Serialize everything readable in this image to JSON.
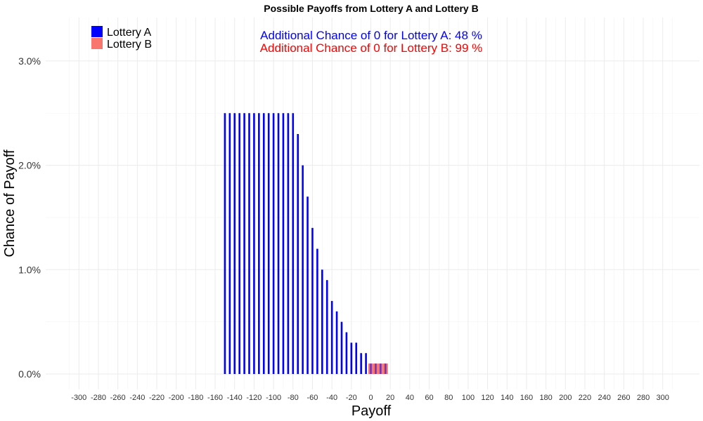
{
  "chart_data": {
    "type": "bar",
    "title": "Possible Payoffs from Lottery A and Lottery B",
    "xlabel": "Payoff",
    "ylabel": "Chance of Payoff",
    "xlim": [
      -310,
      310
    ],
    "ylim": [
      0,
      3.3
    ],
    "x_ticks": [
      -300,
      -280,
      -260,
      -240,
      -220,
      -200,
      -180,
      -160,
      -140,
      -120,
      -100,
      -80,
      -60,
      -40,
      -20,
      0,
      20,
      40,
      60,
      80,
      100,
      120,
      140,
      160,
      180,
      200,
      220,
      240,
      260,
      280,
      300
    ],
    "y_ticks": [
      {
        "value": 0,
        "label": "0.0%"
      },
      {
        "value": 1,
        "label": "1.0%"
      },
      {
        "value": 2,
        "label": "2.0%"
      },
      {
        "value": 3,
        "label": "3.0%"
      }
    ],
    "grid": true,
    "legend_position": "top-left",
    "annotations": [
      {
        "text": "Additional Chance of 0 for Lottery A:  48 %",
        "color": "#0000ff"
      },
      {
        "text": "Additional Chance of 0 for Lottery B:  99 %",
        "color": "#ff0000"
      }
    ],
    "series": [
      {
        "name": "Lottery A",
        "color": "#0000ff",
        "x": [
          -150,
          -145,
          -140,
          -135,
          -130,
          -125,
          -120,
          -115,
          -110,
          -105,
          -100,
          -95,
          -90,
          -85,
          -80,
          -75,
          -70,
          -65,
          -60,
          -55,
          -50,
          -45,
          -40,
          -35,
          -30,
          -25,
          -20,
          -15,
          -10,
          -5
        ],
        "values": [
          2.5,
          2.5,
          2.5,
          2.5,
          2.5,
          2.5,
          2.5,
          2.5,
          2.5,
          2.5,
          2.5,
          2.5,
          2.5,
          2.5,
          2.5,
          2.3,
          2.0,
          1.7,
          1.4,
          1.2,
          1.0,
          0.9,
          0.7,
          0.6,
          0.5,
          0.4,
          0.3,
          0.3,
          0.2,
          0.2
        ]
      },
      {
        "name": "Lottery B",
        "color": "#f8766d",
        "x": [
          0,
          5,
          10,
          15
        ],
        "values": [
          0.1,
          0.1,
          0.1,
          0.1
        ]
      }
    ]
  }
}
